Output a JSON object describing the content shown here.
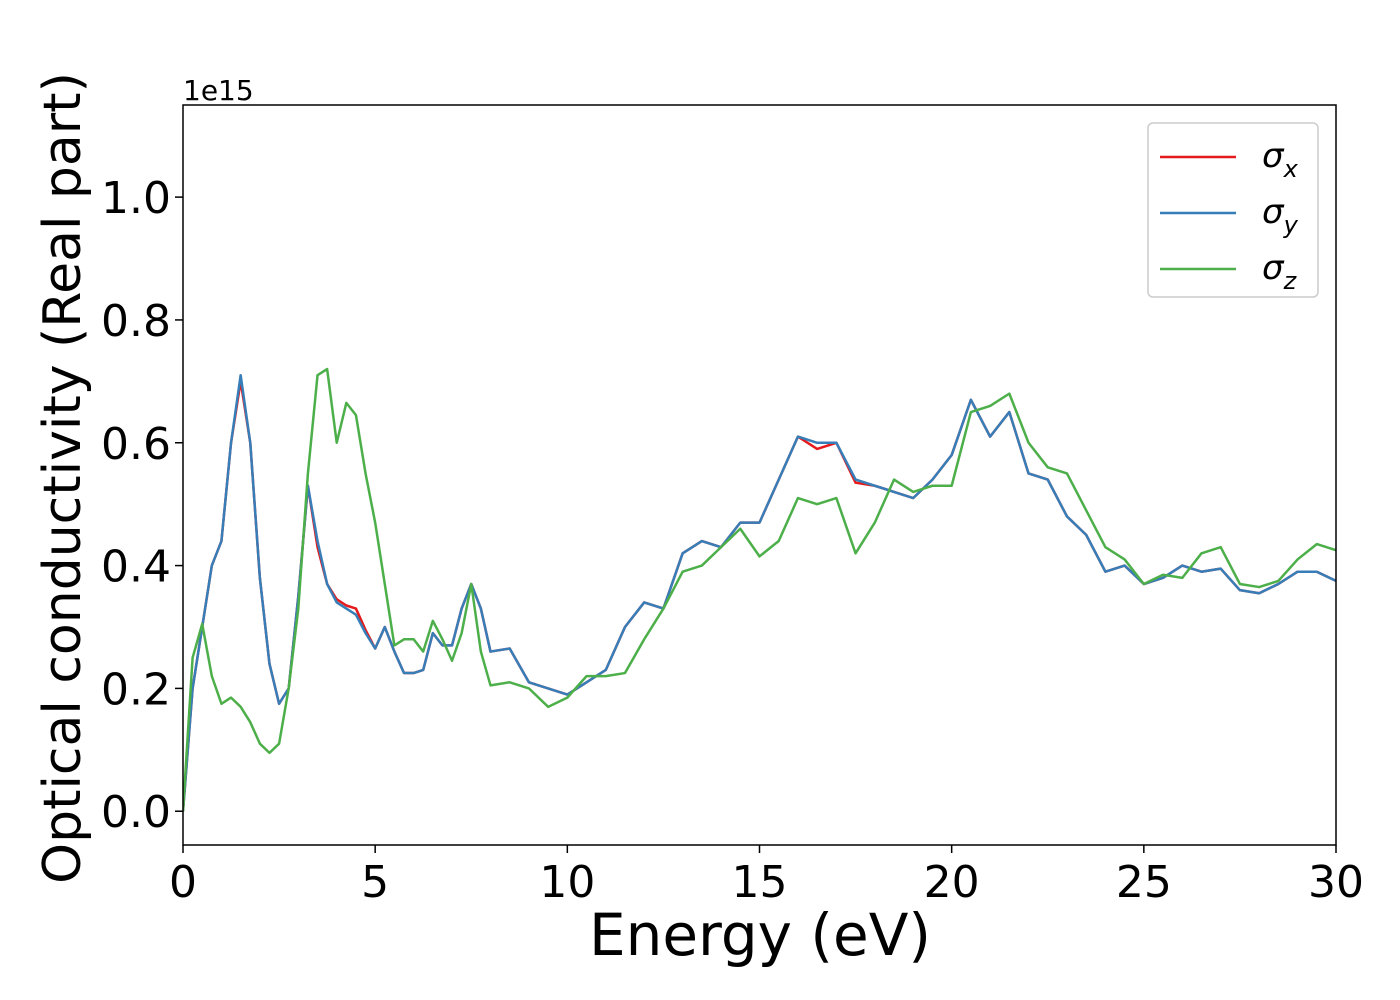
{
  "chart_data": {
    "type": "line",
    "xlabel": "Energy (eV)",
    "ylabel": "Optical conductivity (Real part)",
    "y_offset_label": "1e15",
    "x": [
      0,
      0.25,
      0.5,
      0.75,
      1,
      1.25,
      1.5,
      1.75,
      2,
      2.25,
      2.5,
      2.75,
      3,
      3.25,
      3.5,
      3.75,
      4,
      4.25,
      4.5,
      4.75,
      5,
      5.25,
      5.5,
      5.75,
      6,
      6.25,
      6.5,
      6.75,
      7,
      7.25,
      7.5,
      7.75,
      8,
      8.5,
      9,
      9.5,
      10,
      10.5,
      11,
      11.5,
      12,
      12.5,
      13,
      13.5,
      14,
      14.5,
      15,
      15.5,
      16,
      16.5,
      17,
      17.5,
      18,
      18.5,
      19,
      19.5,
      20,
      20.5,
      21,
      21.5,
      22,
      22.5,
      23,
      23.5,
      24,
      24.5,
      25,
      25.5,
      26,
      26.5,
      27,
      27.5,
      28,
      28.5,
      29,
      29.5,
      30
    ],
    "series": [
      {
        "name": "σx",
        "color": "#e41a1c",
        "values": [
          0,
          0.2,
          0.3,
          0.4,
          0.44,
          0.6,
          0.7,
          0.6,
          0.38,
          0.24,
          0.175,
          0.2,
          0.35,
          0.53,
          0.43,
          0.37,
          0.345,
          0.335,
          0.33,
          0.295,
          0.265,
          0.3,
          0.26,
          0.225,
          0.225,
          0.23,
          0.29,
          0.27,
          0.27,
          0.33,
          0.37,
          0.33,
          0.26,
          0.265,
          0.21,
          0.2,
          0.19,
          0.21,
          0.23,
          0.3,
          0.34,
          0.33,
          0.42,
          0.44,
          0.43,
          0.47,
          0.47,
          0.54,
          0.61,
          0.59,
          0.6,
          0.535,
          0.53,
          0.52,
          0.51,
          0.54,
          0.58,
          0.67,
          0.61,
          0.65,
          0.55,
          0.54,
          0.48,
          0.45,
          0.39,
          0.4,
          0.37,
          0.38,
          0.4,
          0.39,
          0.395,
          0.36,
          0.355,
          0.37,
          0.39,
          0.39,
          0.375
        ]
      },
      {
        "name": "σy",
        "color": "#377eb8",
        "values": [
          0,
          0.2,
          0.3,
          0.4,
          0.44,
          0.6,
          0.71,
          0.6,
          0.38,
          0.24,
          0.175,
          0.2,
          0.35,
          0.53,
          0.44,
          0.37,
          0.34,
          0.33,
          0.32,
          0.29,
          0.265,
          0.3,
          0.26,
          0.225,
          0.225,
          0.23,
          0.29,
          0.27,
          0.27,
          0.33,
          0.37,
          0.33,
          0.26,
          0.265,
          0.21,
          0.2,
          0.19,
          0.21,
          0.23,
          0.3,
          0.34,
          0.33,
          0.42,
          0.44,
          0.43,
          0.47,
          0.47,
          0.54,
          0.61,
          0.6,
          0.6,
          0.54,
          0.53,
          0.52,
          0.51,
          0.54,
          0.58,
          0.67,
          0.61,
          0.65,
          0.55,
          0.54,
          0.48,
          0.45,
          0.39,
          0.4,
          0.37,
          0.38,
          0.4,
          0.39,
          0.395,
          0.36,
          0.355,
          0.37,
          0.39,
          0.39,
          0.375
        ]
      },
      {
        "name": "σz",
        "color": "#4daf4a",
        "values": [
          0,
          0.25,
          0.305,
          0.22,
          0.175,
          0.185,
          0.17,
          0.145,
          0.11,
          0.095,
          0.11,
          0.2,
          0.33,
          0.55,
          0.71,
          0.72,
          0.6,
          0.665,
          0.645,
          0.55,
          0.47,
          0.37,
          0.27,
          0.28,
          0.28,
          0.26,
          0.31,
          0.28,
          0.245,
          0.29,
          0.37,
          0.26,
          0.205,
          0.21,
          0.2,
          0.17,
          0.185,
          0.22,
          0.22,
          0.225,
          0.28,
          0.33,
          0.39,
          0.4,
          0.43,
          0.46,
          0.415,
          0.44,
          0.51,
          0.5,
          0.51,
          0.42,
          0.47,
          0.54,
          0.52,
          0.53,
          0.53,
          0.65,
          0.66,
          0.68,
          0.6,
          0.56,
          0.55,
          0.49,
          0.43,
          0.41,
          0.37,
          0.385,
          0.38,
          0.42,
          0.43,
          0.37,
          0.365,
          0.375,
          0.41,
          0.435,
          0.425
        ]
      }
    ],
    "xlim": [
      0,
      30
    ],
    "xticks": [
      0,
      5,
      10,
      15,
      20,
      25,
      30
    ],
    "ylim": [
      -0.055,
      1.15
    ],
    "yticks": [
      {
        "value": 0,
        "label": "0.0"
      },
      0.2,
      0.4,
      0.6,
      0.8,
      {
        "value": 1,
        "label": "1.0"
      }
    ],
    "grid": false,
    "legend": "upper right"
  }
}
